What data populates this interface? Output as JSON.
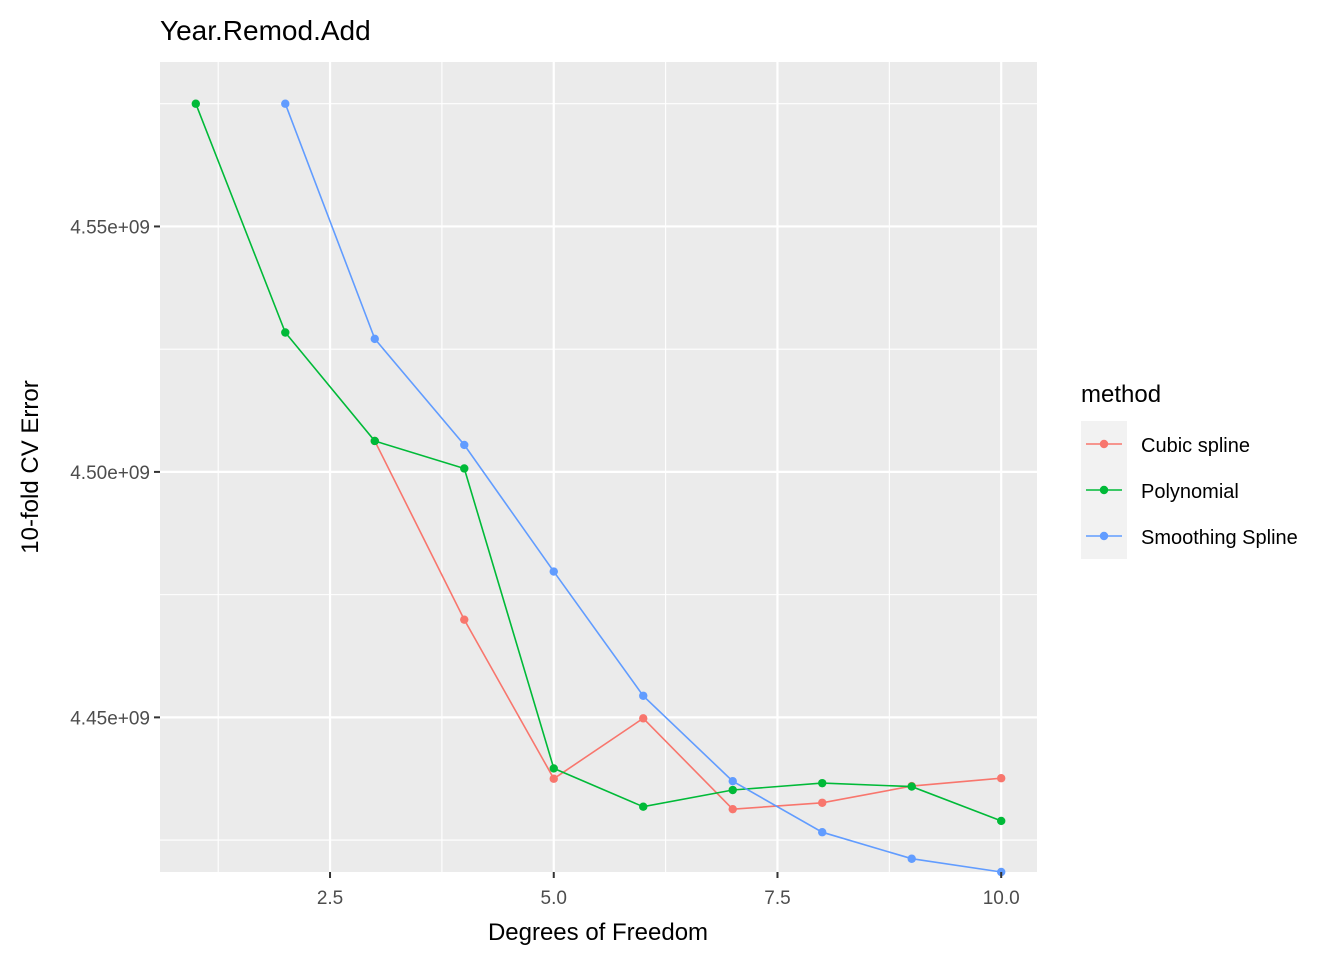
{
  "chart_data": {
    "type": "line",
    "title": "Year.Remod.Add",
    "xlabel": "Degrees of Freedom",
    "ylabel": "10-fold CV Error",
    "xlim": [
      0.6,
      10.4
    ],
    "ylim": [
      4418500000,
      4583500000
    ],
    "x_ticks": [
      2.5,
      5.0,
      7.5,
      10.0
    ],
    "x_tick_labels": [
      "2.5",
      "5.0",
      "7.5",
      "10.0"
    ],
    "y_ticks": [
      4450000000,
      4500000000,
      4550000000
    ],
    "y_tick_labels": [
      "4.45e+09",
      "4.50e+09",
      "4.55e+09"
    ],
    "grid": true,
    "legend": {
      "title": "method",
      "placement": "right"
    },
    "series": [
      {
        "name": "Cubic spline",
        "color": "#F8766D",
        "x": [
          3,
          4,
          5,
          6,
          7,
          8,
          9,
          10
        ],
        "y": [
          4506300000,
          4469900000,
          4437500000,
          4449800000,
          4431300000,
          4432600000,
          4436000000,
          4437600000
        ]
      },
      {
        "name": "Polynomial",
        "color": "#00BA38",
        "x": [
          1,
          2,
          3,
          4,
          5,
          6,
          7,
          8,
          9,
          10
        ],
        "y": [
          4575000000,
          4528400000,
          4506300000,
          4500700000,
          4439600000,
          4431800000,
          4435200000,
          4436600000,
          4435900000,
          4428900000
        ]
      },
      {
        "name": "Smoothing Spline",
        "color": "#619CFF",
        "x": [
          2,
          3,
          4,
          5,
          6,
          7,
          8,
          9,
          10
        ],
        "y": [
          4575000000,
          4527100000,
          4505500000,
          4479700000,
          4454400000,
          4437000000,
          4426600000,
          4421200000,
          4418500000
        ]
      }
    ]
  }
}
